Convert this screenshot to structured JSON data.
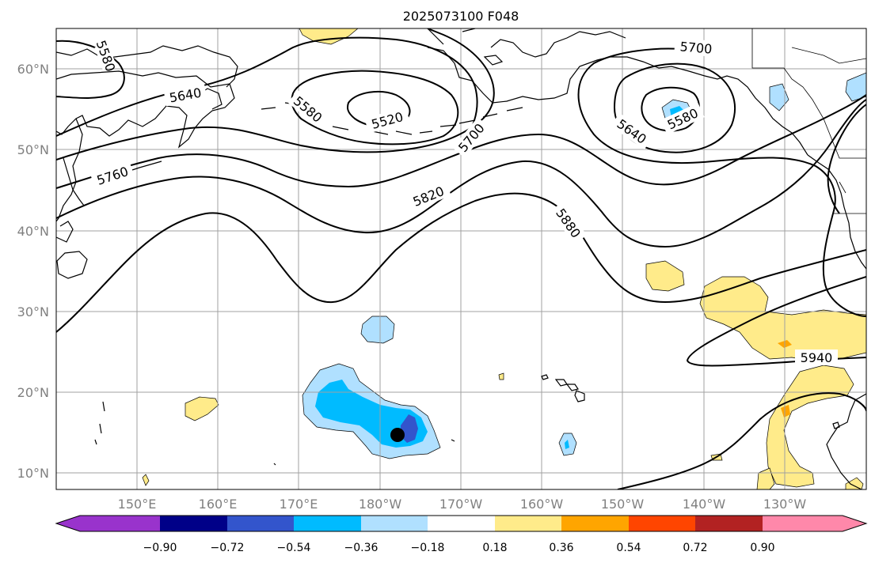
{
  "title": "2025073100 F048",
  "lon_ticks": [
    "150°E",
    "160°E",
    "170°E",
    "180°W",
    "170°W",
    "160°W",
    "150°W",
    "140°W",
    "130°W"
  ],
  "lat_ticks": [
    "60°N",
    "50°N",
    "40°N",
    "30°N",
    "20°N",
    "10°N"
  ],
  "contour_labels": [
    "5580",
    "5640",
    "5520",
    "5580",
    "5700",
    "5760",
    "5820",
    "5880",
    "5700",
    "5640",
    "5580",
    "5940"
  ],
  "colorbar": {
    "tick_labels": [
      "−0.90",
      "−0.72",
      "−0.54",
      "−0.36",
      "−0.18",
      "0.18",
      "0.36",
      "0.54",
      "0.72",
      "0.90"
    ],
    "colors": [
      "#9933cc",
      "#000088",
      "#3355cc",
      "#00bbff",
      "#b0e0ff",
      "#ffffff",
      "#ffeb8a",
      "#ffa500",
      "#ff4500",
      "#b22222",
      "#ff88aa"
    ]
  },
  "colors": {
    "contour": "#000000",
    "grid": "#a0a0a0",
    "light_blue": "#b0e0ff",
    "blue": "#00bbff",
    "mid_blue": "#3355cc",
    "dark_blue": "#000088",
    "yellow": "#ffeb8a",
    "orange": "#ffa500",
    "marker": "#000000"
  },
  "map": {
    "lon_range": [
      "140°E",
      "120°W"
    ],
    "lat_range": [
      "8°N",
      "65°N"
    ],
    "marker": "black-dot-storm-center"
  }
}
